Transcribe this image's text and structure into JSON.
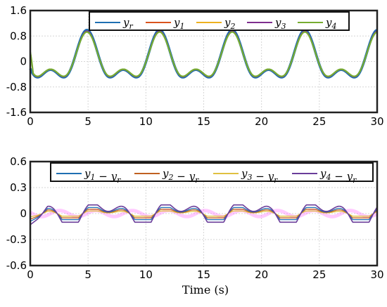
{
  "xlabel": "Time (s)",
  "colors": {
    "y_r": "#1f6fb2",
    "y_1": "#d9531e",
    "y_2": "#edb120",
    "y_3": "#7e2f8e",
    "y_4": "#77ac30",
    "e_1": "#1f6fb2",
    "e_2": "#c06020",
    "e_3": "#e0c040",
    "e_4": "#6a3d9a",
    "highlight": "#ff66ff"
  },
  "chart_data": [
    {
      "type": "line",
      "xlim": [
        0,
        30
      ],
      "ylim": [
        -1.6,
        1.6
      ],
      "xticks": [
        "0",
        "5",
        "10",
        "15",
        "20",
        "25",
        "30"
      ],
      "yticks": [
        "-1.6",
        "-0.8",
        "0",
        "0.8",
        "1.6"
      ],
      "grid": true,
      "legend_position": "top",
      "legend_orientation": "horizontal",
      "signal_description": "Sum of sinusoids with period ~6.28 s; peaks near 0.95 at t≈4.9, 11.2, 17.5, 23.8, 30; minima near -0.95 at t≈1.4, 7.7, 14, 20.3, 26.6; secondary bumps ~0.22 near t≈0.4, 2.9, 6.7, 9.2",
      "series": [
        {
          "name": "y_r",
          "label_base": "y",
          "label_sub": "r"
        },
        {
          "name": "y_1",
          "label_base": "y",
          "label_sub": "1"
        },
        {
          "name": "y_2",
          "label_base": "y",
          "label_sub": "2"
        },
        {
          "name": "y_3",
          "label_base": "y",
          "label_sub": "3"
        },
        {
          "name": "y_4",
          "label_base": "y",
          "label_sub": "4"
        }
      ],
      "sample_points": {
        "x": [
          0,
          0.4,
          1.4,
          2.9,
          4.9,
          6.7,
          7.7,
          9.2,
          11.2,
          13,
          14,
          15.5,
          17.5,
          19.3,
          20.3,
          21.8,
          23.8,
          25.6,
          26.6,
          28.1,
          30
        ],
        "y_r": [
          0.0,
          0.22,
          -0.95,
          0.22,
          0.95,
          0.22,
          -0.95,
          0.22,
          0.95,
          0.22,
          -0.95,
          0.22,
          0.95,
          0.22,
          -0.95,
          0.22,
          0.95,
          0.22,
          -0.95,
          0.22,
          0.95
        ]
      }
    },
    {
      "type": "line",
      "xlim": [
        0,
        30
      ],
      "ylim": [
        -0.6,
        0.6
      ],
      "xticks": [
        "0",
        "5",
        "10",
        "15",
        "20",
        "25",
        "30"
      ],
      "yticks": [
        "-0.6",
        "-0.3",
        "0",
        "0.3",
        "0.6"
      ],
      "grid": true,
      "legend_position": "top",
      "legend_orientation": "horizontal",
      "signal_description": "Tracking errors oscillating with same period; amplitude ~0.10 for e_4, ~0.07 for e_1, ~0.05 for e_2, ~0.03 for e_3; initial transient to about -0.13 at t=0",
      "series": [
        {
          "name": "e_1",
          "label_a": "y",
          "label_a_sub": "1",
          "label_b": "y",
          "label_b_sub": "r",
          "amplitude": 0.07
        },
        {
          "name": "e_2",
          "label_a": "y",
          "label_a_sub": "2",
          "label_b": "y",
          "label_b_sub": "r",
          "amplitude": 0.05
        },
        {
          "name": "e_3",
          "label_a": "y",
          "label_a_sub": "3",
          "label_b": "y",
          "label_b_sub": "r",
          "amplitude": 0.03
        },
        {
          "name": "e_4",
          "label_a": "y",
          "label_a_sub": "4",
          "label_b": "y",
          "label_b_sub": "r",
          "amplitude": 0.1
        }
      ],
      "initial_value": -0.13
    }
  ]
}
